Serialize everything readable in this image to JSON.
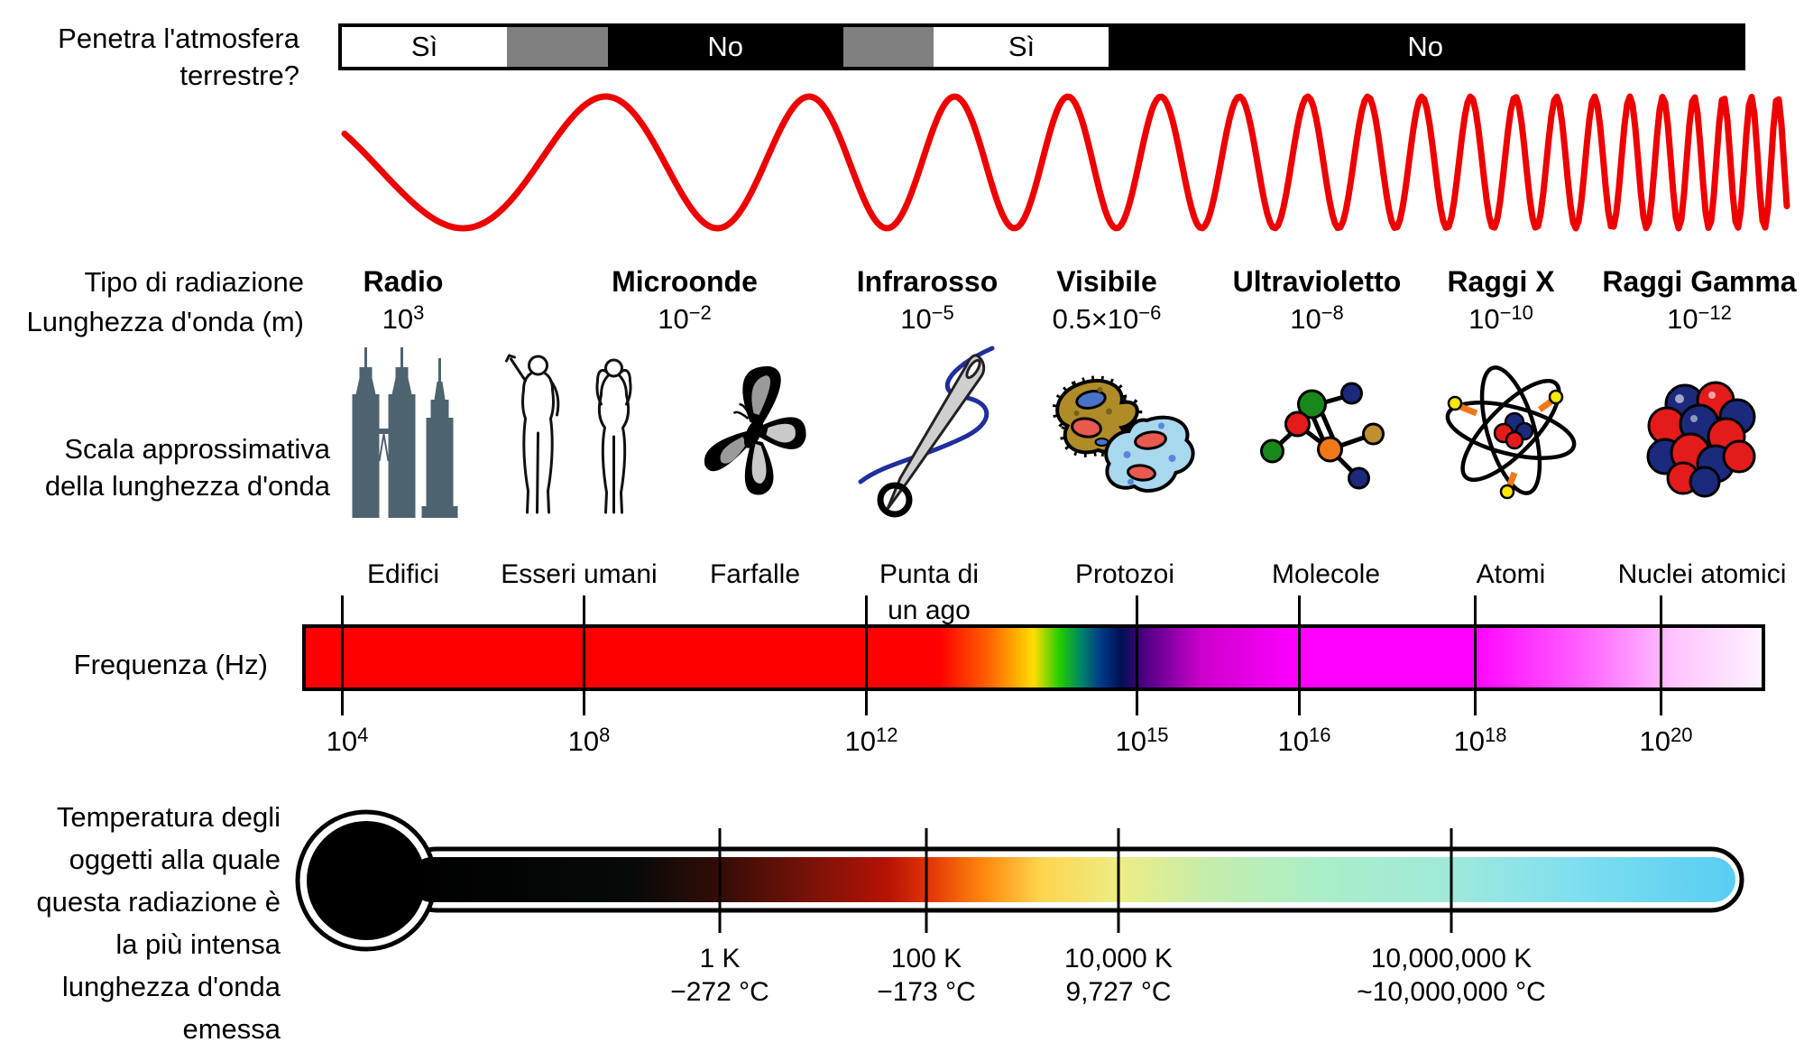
{
  "atmosphere": {
    "question_lines": [
      "Penetra l'atmosfera",
      "terrestre?"
    ],
    "segments": [
      {
        "label": "Sì",
        "answer": "yes"
      },
      {
        "label": "",
        "answer": "partial"
      },
      {
        "label": "No",
        "answer": "no"
      },
      {
        "label": "",
        "answer": "partial"
      },
      {
        "label": "Sì",
        "answer": "yes"
      },
      {
        "label": "No",
        "answer": "no"
      }
    ]
  },
  "spectrum": {
    "type_row_label": "Tipo di radiazione",
    "wavelength_row_label": "Lunghezza d'onda (m)",
    "bands": [
      {
        "type": "Radio",
        "wavelength_base": "10",
        "wavelength_exp": "3"
      },
      {
        "type": "Microonde",
        "wavelength_base": "10",
        "wavelength_exp": "−2"
      },
      {
        "type": "Infrarosso",
        "wavelength_base": "10",
        "wavelength_exp": "−5"
      },
      {
        "type": "Visibile",
        "wavelength_base": "0.5×10",
        "wavelength_exp": "−6"
      },
      {
        "type": "Ultravioletto",
        "wavelength_base": "10",
        "wavelength_exp": "−8"
      },
      {
        "type": "Raggi X",
        "wavelength_base": "10",
        "wavelength_exp": "−10"
      },
      {
        "type": "Raggi Gamma",
        "wavelength_base": "10",
        "wavelength_exp": "−12"
      }
    ]
  },
  "scale_row": {
    "label_lines": [
      "Scala approssimativa",
      "della lunghezza d'onda"
    ],
    "items": [
      {
        "label": "Edifici",
        "icon": "buildings-icon"
      },
      {
        "label": "Esseri umani",
        "icon": "humans-icon"
      },
      {
        "label": "Farfalle",
        "icon": "butterfly-icon"
      },
      {
        "label": "Punta di",
        "label_line2": "un ago",
        "icon": "needle-icon"
      },
      {
        "label": "Protozoi",
        "icon": "protozoa-icon"
      },
      {
        "label": "Molecole",
        "icon": "molecule-icon"
      },
      {
        "label": "Atomi",
        "icon": "atom-icon"
      },
      {
        "label": "Nuclei atomici",
        "icon": "nucleus-icon"
      }
    ]
  },
  "frequency": {
    "row_label": "Frequenza (Hz)",
    "ticks": [
      {
        "base": "10",
        "exp": "4"
      },
      {
        "base": "10",
        "exp": "8"
      },
      {
        "base": "10",
        "exp": "12"
      },
      {
        "base": "10",
        "exp": "15"
      },
      {
        "base": "10",
        "exp": "16"
      },
      {
        "base": "10",
        "exp": "18"
      },
      {
        "base": "10",
        "exp": "20"
      }
    ]
  },
  "temperature": {
    "label_lines": [
      "Temperatura degli",
      "oggetti alla quale",
      "questa radiazione è",
      "la più intensa",
      "lunghezza d'onda",
      "emessa"
    ],
    "ticks": [
      {
        "kelvin": "1 K",
        "celsius": "−272 °C"
      },
      {
        "kelvin": "100 K",
        "celsius": "−173 °C"
      },
      {
        "kelvin": "10,000 K",
        "celsius": "9,727 °C"
      },
      {
        "kelvin": "10,000,000 K",
        "celsius": "~10,000,000 °C"
      }
    ]
  },
  "colors": {
    "wave": "#ee0000",
    "segment_partial_gray": "#808080",
    "building_slate": "#4d6370",
    "thread_blue": "#1f2f9e",
    "frequency_gradient": [
      "#ff0000",
      "#ff6600",
      "#ffdd00",
      "#22cc00",
      "#008866",
      "#003a88",
      "#001055",
      "#550088",
      "#cc00cc",
      "#ff00ff",
      "#ff66ff",
      "#ffc4ff",
      "#fdf2ff"
    ],
    "thermometer_gradient": [
      "#000000",
      "#330d06",
      "#7a1208",
      "#b51205",
      "#e33505",
      "#ff8c10",
      "#ffd34d",
      "#eded85",
      "#c6edaa",
      "#abeec6",
      "#9fe9da",
      "#7edff0",
      "#58cdf2"
    ]
  }
}
